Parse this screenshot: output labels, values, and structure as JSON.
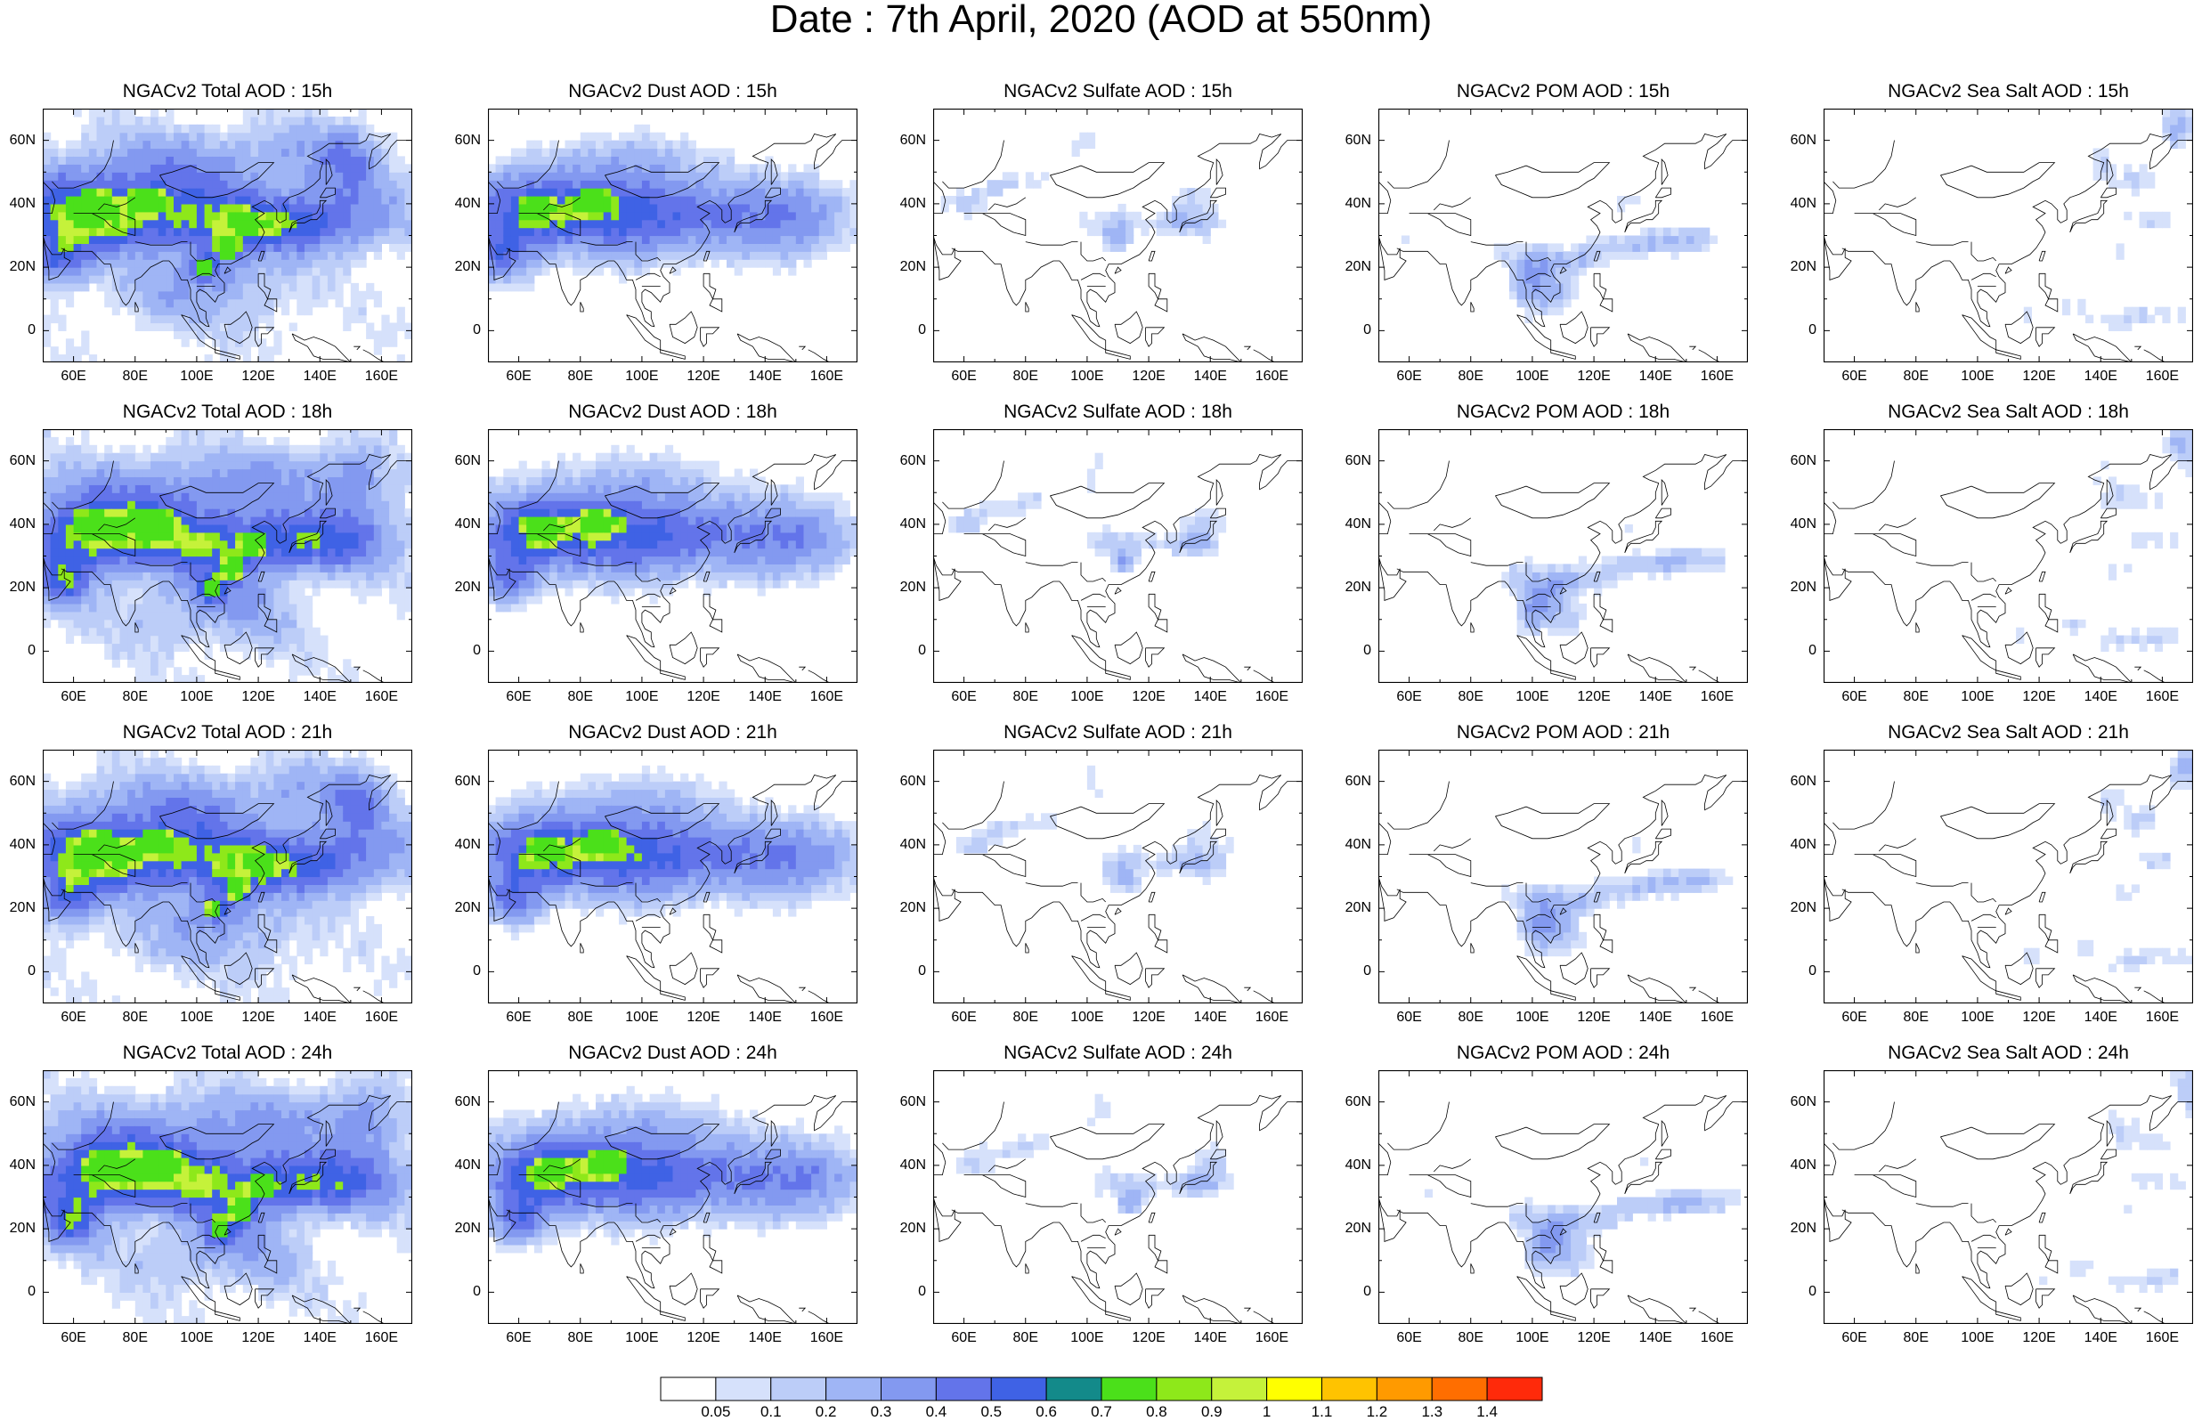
{
  "title": "Date : 7th April, 2020 (AOD at 550nm)",
  "map_axes": {
    "lon_ticks": [
      "60E",
      "80E",
      "100E",
      "120E",
      "140E",
      "160E"
    ],
    "lat_ticks": [
      "60N",
      "40N",
      "20N",
      "0"
    ],
    "lon_values": [
      60,
      80,
      100,
      120,
      140,
      160
    ],
    "lat_values": [
      60,
      40,
      20,
      0
    ],
    "lon_range": [
      50,
      170
    ],
    "lat_range": [
      -10,
      70
    ]
  },
  "panels": [
    {
      "title": "NGACv2 Total AOD : 15h",
      "species": "total",
      "hour": 15
    },
    {
      "title": "NGACv2 Dust AOD : 15h",
      "species": "dust",
      "hour": 15
    },
    {
      "title": "NGACv2 Sulfate AOD : 15h",
      "species": "sulfate",
      "hour": 15
    },
    {
      "title": "NGACv2 POM AOD : 15h",
      "species": "pom",
      "hour": 15
    },
    {
      "title": "NGACv2 Sea Salt AOD : 15h",
      "species": "seasalt",
      "hour": 15
    },
    {
      "title": "NGACv2 Total AOD : 18h",
      "species": "total",
      "hour": 18
    },
    {
      "title": "NGACv2 Dust AOD : 18h",
      "species": "dust",
      "hour": 18
    },
    {
      "title": "NGACv2 Sulfate AOD : 18h",
      "species": "sulfate",
      "hour": 18
    },
    {
      "title": "NGACv2 POM AOD : 18h",
      "species": "pom",
      "hour": 18
    },
    {
      "title": "NGACv2 Sea Salt AOD : 18h",
      "species": "seasalt",
      "hour": 18
    },
    {
      "title": "NGACv2 Total AOD : 21h",
      "species": "total",
      "hour": 21
    },
    {
      "title": "NGACv2 Dust AOD : 21h",
      "species": "dust",
      "hour": 21
    },
    {
      "title": "NGACv2 Sulfate AOD : 21h",
      "species": "sulfate",
      "hour": 21
    },
    {
      "title": "NGACv2 POM AOD : 21h",
      "species": "pom",
      "hour": 21
    },
    {
      "title": "NGACv2 Sea Salt AOD : 21h",
      "species": "seasalt",
      "hour": 21
    },
    {
      "title": "NGACv2 Total AOD : 24h",
      "species": "total",
      "hour": 24
    },
    {
      "title": "NGACv2 Dust AOD : 24h",
      "species": "dust",
      "hour": 24
    },
    {
      "title": "NGACv2 Sulfate AOD : 24h",
      "species": "sulfate",
      "hour": 24
    },
    {
      "title": "NGACv2 POM AOD : 24h",
      "species": "pom",
      "hour": 24
    },
    {
      "title": "NGACv2 Sea Salt  AOD : 24h",
      "species": "seasalt",
      "hour": 24
    }
  ],
  "colorbar": {
    "labels": [
      "0.05",
      "0.1",
      "0.2",
      "0.3",
      "0.4",
      "0.5",
      "0.6",
      "0.7",
      "0.8",
      "0.9",
      "1",
      "1.1",
      "1.2",
      "1.3",
      "1.4"
    ],
    "colors": [
      "#ffffff",
      "#d6e1fb",
      "#bccdf8",
      "#9fb5f5",
      "#8399f0",
      "#6374ea",
      "#3f62e5",
      "#138a8a",
      "#4be01a",
      "#8ee81a",
      "#c5f23a",
      "#ffff00",
      "#ffc300",
      "#ff9a00",
      "#ff6e00",
      "#ff2a0a"
    ]
  }
}
